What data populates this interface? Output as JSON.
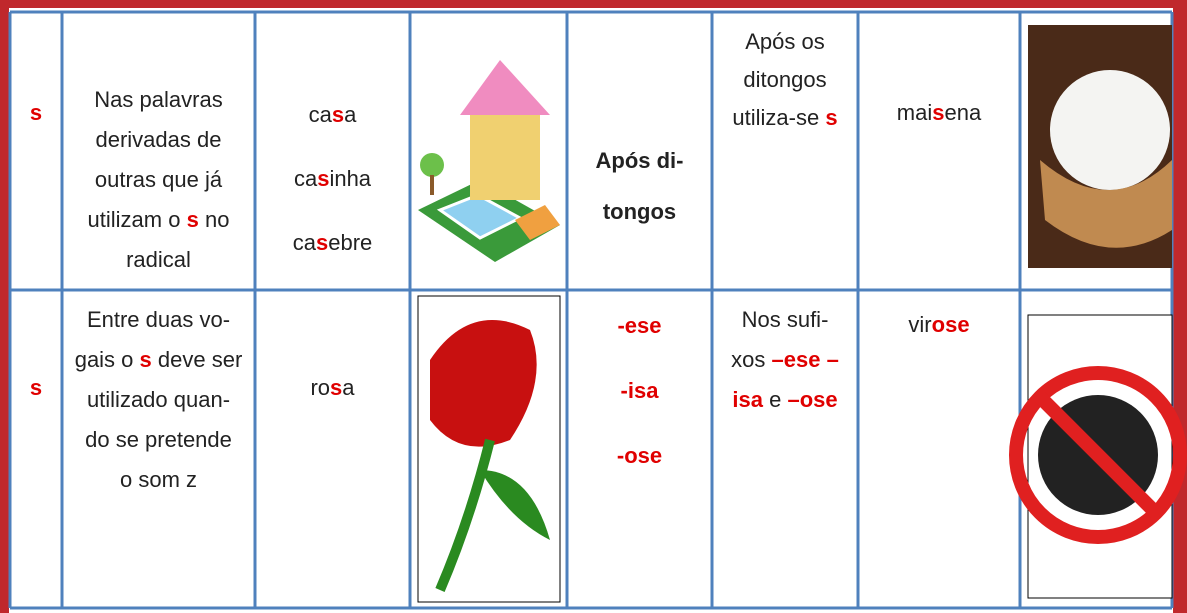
{
  "table": {
    "rows": [
      [
        {
          "lines": [
            [
              {
                "text": "s",
                "color": "#e00000",
                "bold": true
              }
            ]
          ]
        },
        {
          "lines": [
            [
              {
                "text": "Nas palavras"
              }
            ],
            [
              {
                "text": "derivadas de"
              }
            ],
            [
              {
                "text": "outras que já"
              }
            ],
            [
              {
                "text": "utilizam o "
              },
              {
                "text": "s",
                "color": "#e00000",
                "bold": true
              },
              {
                "text": " no"
              }
            ],
            [
              {
                "text": "radical"
              }
            ]
          ]
        },
        {
          "lines": [
            [
              {
                "text": "ca"
              },
              {
                "text": "s",
                "color": "#e00000",
                "bold": true
              },
              {
                "text": "a"
              }
            ],
            [
              {
                "text": "ca"
              },
              {
                "text": "s",
                "color": "#e00000",
                "bold": true
              },
              {
                "text": "inha"
              }
            ],
            [
              {
                "text": "ca"
              },
              {
                "text": "s",
                "color": "#e00000",
                "bold": true
              },
              {
                "text": "ebre"
              }
            ]
          ]
        },
        {
          "lines": [
            [
              {
                "text": "Após di-",
                "bold": true
              }
            ],
            [
              {
                "text": "tongos",
                "bold": true
              }
            ]
          ]
        },
        {
          "lines": [
            [
              {
                "text": "Após os"
              }
            ],
            [
              {
                "text": "ditongos"
              }
            ],
            [
              {
                "text": "utiliza-se "
              },
              {
                "text": "s",
                "color": "#e00000",
                "bold": true
              }
            ]
          ]
        },
        {
          "lines": [
            [
              {
                "text": "mai"
              },
              {
                "text": "s",
                "color": "#e00000",
                "bold": true
              },
              {
                "text": "ena"
              }
            ]
          ]
        }
      ],
      [
        {
          "lines": [
            [
              {
                "text": "s",
                "color": "#e00000",
                "bold": true
              }
            ]
          ]
        },
        {
          "lines": [
            [
              {
                "text": "Entre duas vo-"
              }
            ],
            [
              {
                "text": "gais o "
              },
              {
                "text": "s",
                "color": "#e00000",
                "bold": true
              },
              {
                "text": " deve ser"
              }
            ],
            [
              {
                "text": "utilizado quan-"
              }
            ],
            [
              {
                "text": "do se pretende"
              }
            ],
            [
              {
                "text": "o som z"
              }
            ]
          ]
        },
        {
          "lines": [
            [
              {
                "text": "ro"
              },
              {
                "text": "s",
                "color": "#e00000",
                "bold": true
              },
              {
                "text": "a"
              }
            ]
          ]
        },
        {
          "lines": [
            [
              {
                "text": "-ese",
                "color": "#e00000",
                "bold": true
              }
            ],
            [
              {
                "text": "-isa",
                "color": "#e00000",
                "bold": true
              }
            ],
            [
              {
                "text": "-ose",
                "color": "#e00000",
                "bold": true
              }
            ]
          ]
        },
        {
          "lines": [
            [
              {
                "text": "Nos sufi-"
              }
            ],
            [
              {
                "text": "xos "
              },
              {
                "text": "–ese –",
                "color": "#e00000",
                "bold": true
              }
            ],
            [
              {
                "text": "isa",
                "color": "#e00000",
                "bold": true
              },
              {
                "text": " e "
              },
              {
                "text": "–ose",
                "color": "#e00000",
                "bold": true
              }
            ]
          ]
        },
        {
          "lines": [
            [
              {
                "text": "vir"
              },
              {
                "text": "ose",
                "color": "#e00000",
                "bold": true
              }
            ]
          ]
        }
      ]
    ]
  }
}
